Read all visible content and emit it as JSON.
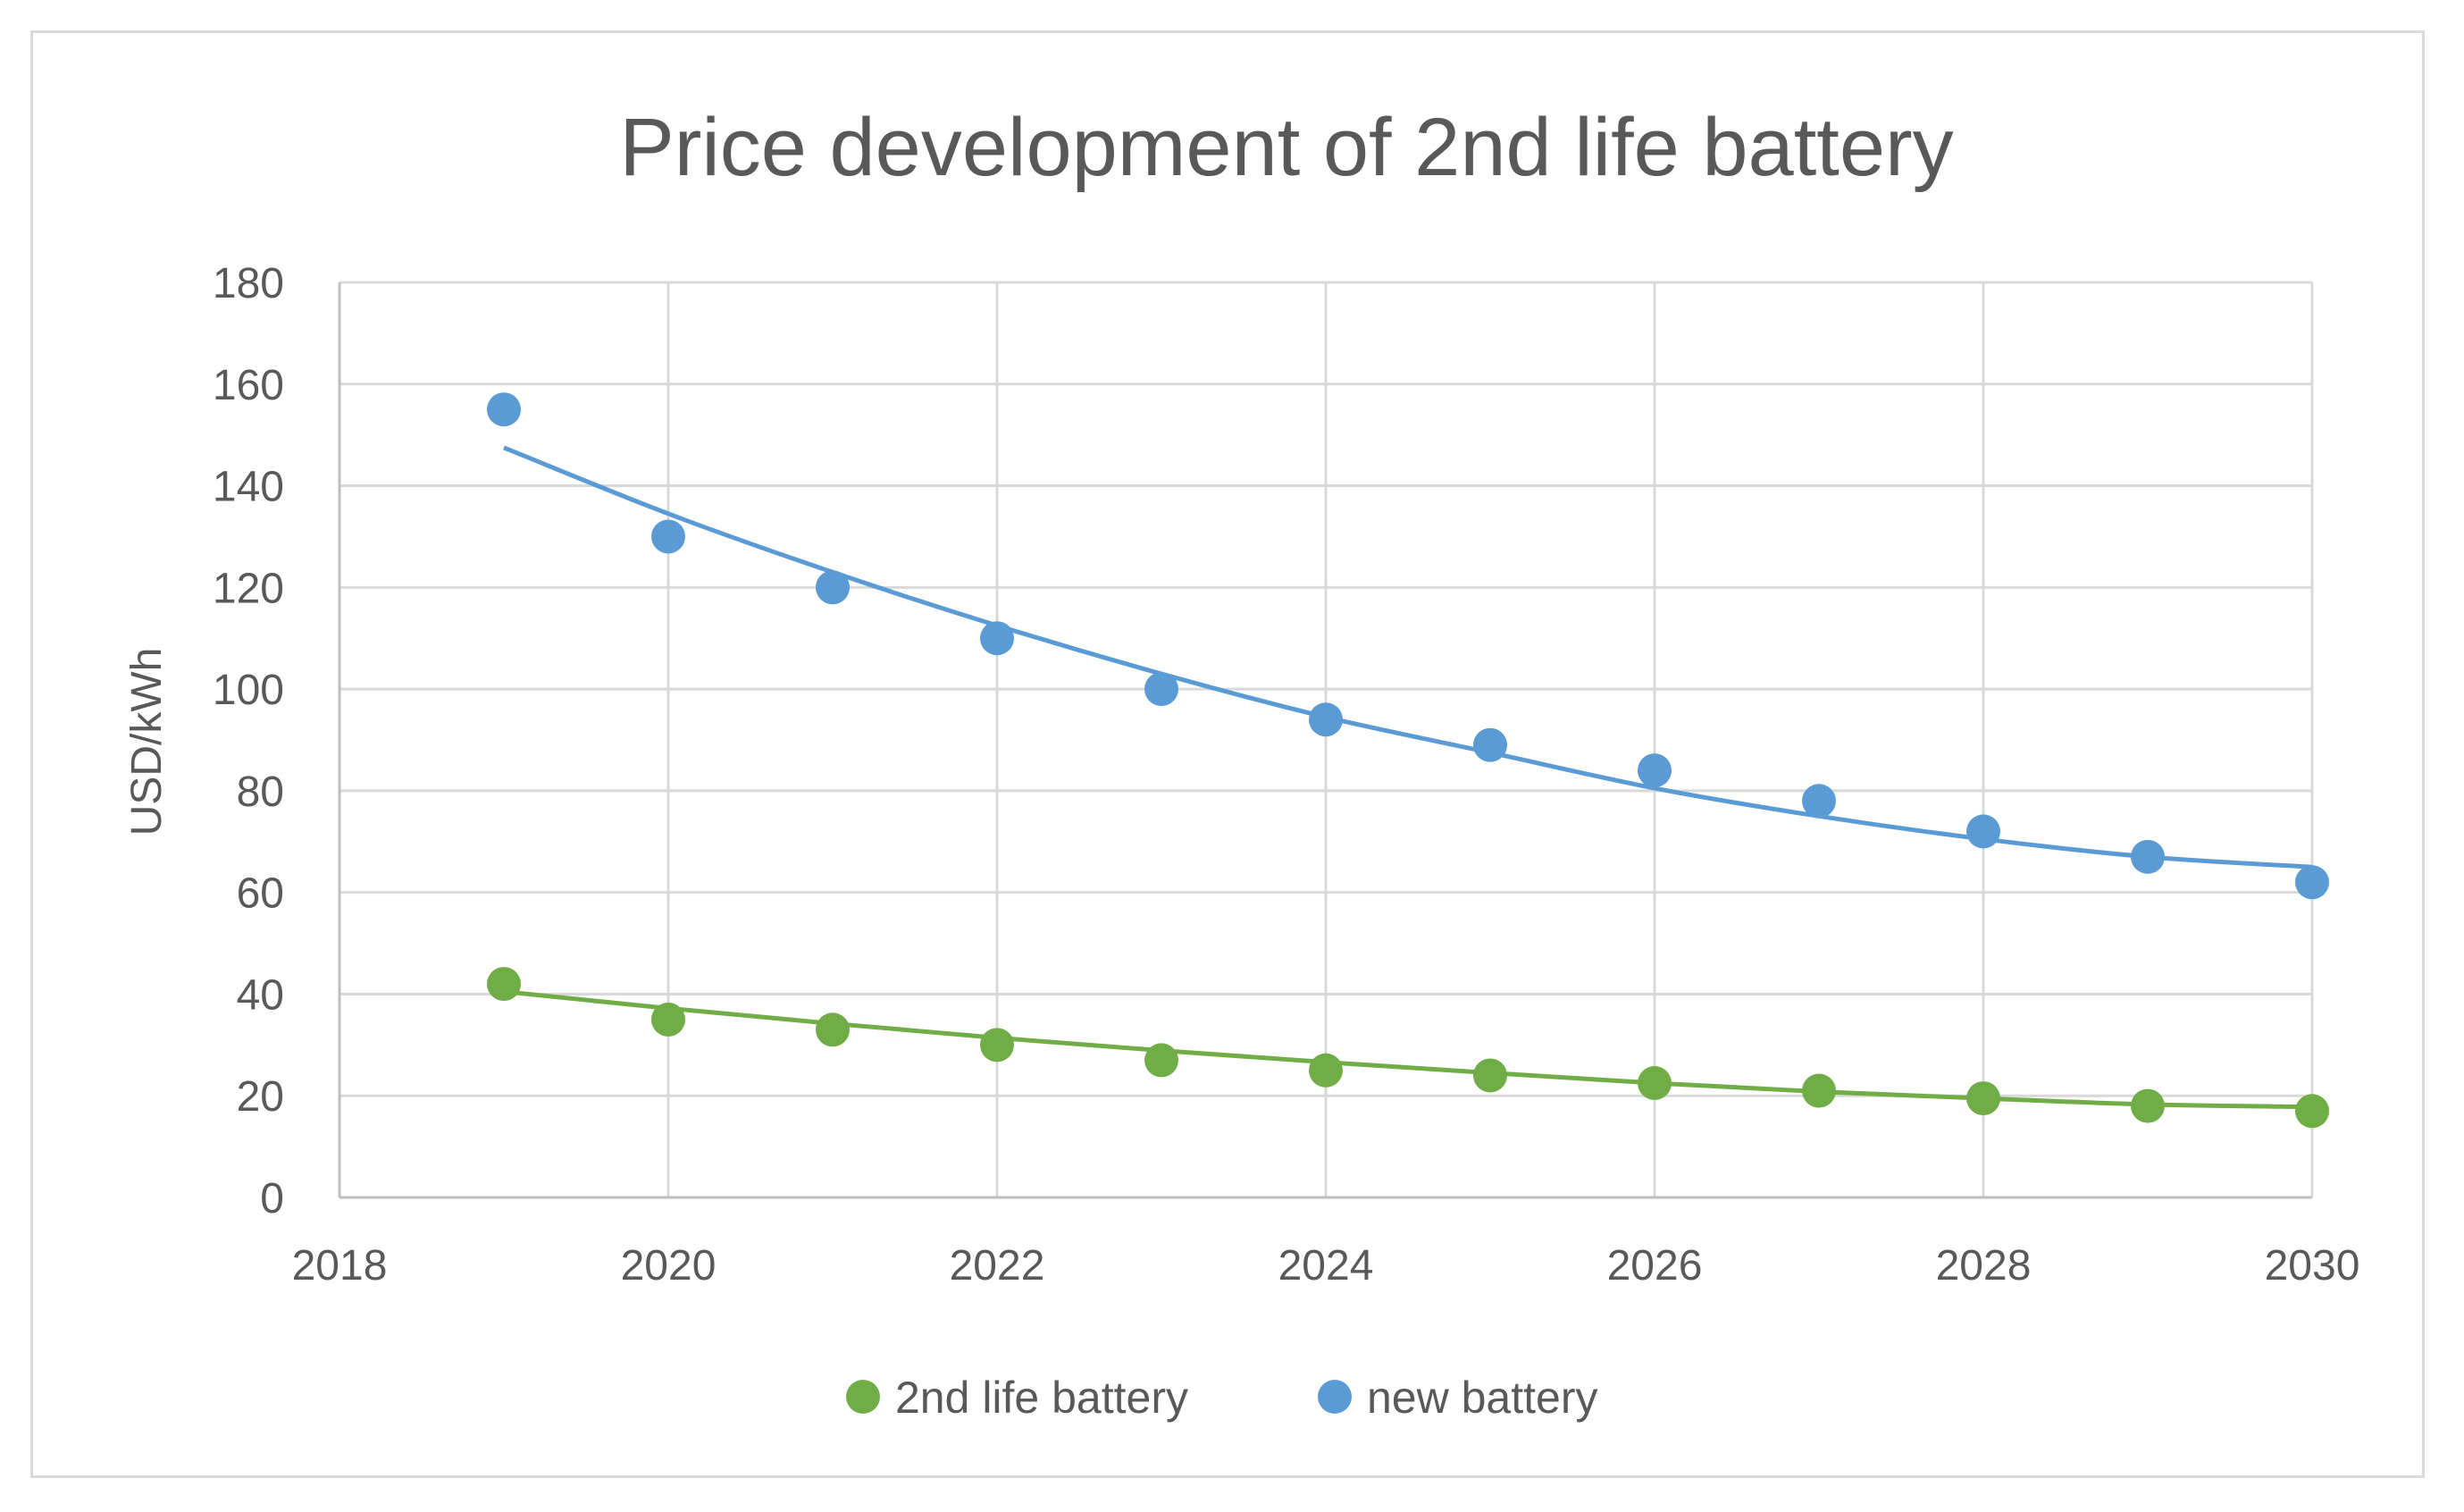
{
  "chart_data": {
    "type": "scatter",
    "title": "Price development of 2nd life battery",
    "xlabel": "",
    "ylabel": "USD/kWh",
    "xlim": [
      2018,
      2030
    ],
    "ylim": [
      0,
      180
    ],
    "xticks": [
      2018,
      2020,
      2022,
      2024,
      2026,
      2028,
      2030
    ],
    "yticks": [
      0,
      20,
      40,
      60,
      80,
      100,
      120,
      140,
      160,
      180
    ],
    "grid": true,
    "legend_position": "bottom",
    "series": [
      {
        "name": "2nd life battery",
        "color": "#70ad47",
        "x": [
          2019,
          2020,
          2021,
          2022,
          2023,
          2024,
          2025,
          2026,
          2027,
          2028,
          2029,
          2030
        ],
        "values": [
          42,
          35,
          33,
          30,
          27,
          25,
          24,
          22.5,
          21,
          19.5,
          18,
          17
        ],
        "trendline": [
          [
            2019,
            40.5
          ],
          [
            2020,
            37.2
          ],
          [
            2021,
            34.2
          ],
          [
            2022,
            31.4
          ],
          [
            2023,
            28.9
          ],
          [
            2024,
            26.6
          ],
          [
            2025,
            24.5
          ],
          [
            2026,
            22.5
          ],
          [
            2027,
            20.8
          ],
          [
            2028,
            19.5
          ],
          [
            2029,
            18.3
          ],
          [
            2030,
            17.8
          ]
        ]
      },
      {
        "name": "new battery",
        "color": "#5b9bd5",
        "x": [
          2019,
          2020,
          2021,
          2022,
          2023,
          2024,
          2025,
          2026,
          2027,
          2028,
          2029,
          2030
        ],
        "values": [
          155,
          130,
          120,
          110,
          100,
          94,
          89,
          84,
          78,
          72,
          67,
          62
        ],
        "trendline": [
          [
            2019,
            147.5
          ],
          [
            2020,
            134.5
          ],
          [
            2021,
            123
          ],
          [
            2022,
            112.5
          ],
          [
            2023,
            103
          ],
          [
            2024,
            94.5
          ],
          [
            2025,
            87.5
          ],
          [
            2026,
            80.5
          ],
          [
            2027,
            75
          ],
          [
            2028,
            70.5
          ],
          [
            2029,
            67
          ],
          [
            2030,
            65
          ]
        ]
      }
    ]
  }
}
